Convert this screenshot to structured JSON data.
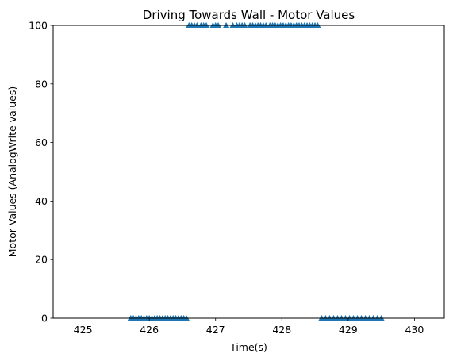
{
  "chart_data": {
    "type": "scatter",
    "title": "Driving Towards Wall - Motor Values",
    "xlabel": "Time(s)",
    "ylabel": "Motor Values (AnalogWrite values)",
    "xlim": [
      424.55,
      430.45
    ],
    "ylim": [
      0,
      100
    ],
    "xticks": [
      425,
      426,
      427,
      428,
      429,
      430
    ],
    "xtick_labels": [
      "425",
      "426",
      "427",
      "428",
      "429",
      "430"
    ],
    "yticks": [
      0,
      20,
      40,
      60,
      80,
      100
    ],
    "ytick_labels": [
      "0",
      "20",
      "40",
      "60",
      "80",
      "100"
    ],
    "grid": false,
    "legend": "none",
    "marker": "triangle-up",
    "series": [
      {
        "color": "#1f77b4",
        "x": [
          425.72,
          425.76,
          425.8,
          425.84,
          425.88,
          425.92,
          425.96,
          426.0,
          426.04,
          426.08,
          426.12,
          426.16,
          426.2,
          426.24,
          426.28,
          426.32,
          426.36,
          426.4,
          426.44,
          426.48,
          426.52,
          426.56,
          426.6,
          426.64,
          426.68,
          426.72,
          426.78,
          426.82,
          426.86,
          426.96,
          427.0,
          427.04,
          427.16,
          427.26,
          427.32,
          427.36,
          427.4,
          427.44,
          427.52,
          427.56,
          427.6,
          427.64,
          427.68,
          427.72,
          427.76,
          427.82,
          427.86,
          427.9,
          427.94,
          427.98,
          428.02,
          428.06,
          428.1,
          428.14,
          428.18,
          428.22,
          428.26,
          428.3,
          428.34,
          428.38,
          428.42,
          428.46,
          428.5,
          428.54,
          428.6,
          428.66,
          428.72,
          428.78,
          428.84,
          428.9,
          428.96,
          429.02,
          429.08,
          429.14,
          429.2,
          429.26,
          429.32,
          429.38,
          429.44,
          429.5
        ],
        "y": [
          0,
          0,
          0,
          0,
          0,
          0,
          0,
          0,
          0,
          0,
          0,
          0,
          0,
          0,
          0,
          0,
          0,
          0,
          0,
          0,
          0,
          0,
          100,
          100,
          100,
          100,
          100,
          100,
          100,
          100,
          100,
          100,
          100,
          100,
          100,
          100,
          100,
          100,
          100,
          100,
          100,
          100,
          100,
          100,
          100,
          100,
          100,
          100,
          100,
          100,
          100,
          100,
          100,
          100,
          100,
          100,
          100,
          100,
          100,
          100,
          100,
          100,
          100,
          100,
          0,
          0,
          0,
          0,
          0,
          0,
          0,
          0,
          0,
          0,
          0,
          0,
          0,
          0,
          0,
          0
        ]
      }
    ]
  }
}
